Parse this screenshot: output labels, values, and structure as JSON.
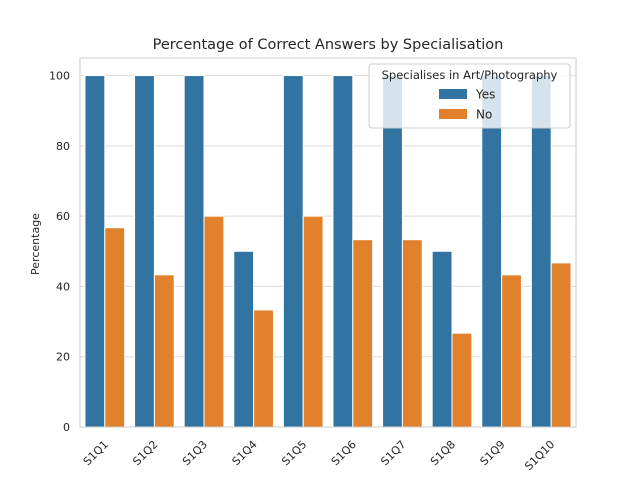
{
  "chart_data": {
    "type": "bar",
    "title": "Percentage of Correct Answers by Specialisation",
    "xlabel": "",
    "ylabel": "Percentage",
    "categories": [
      "S1Q1",
      "S1Q2",
      "S1Q3",
      "S1Q4",
      "S1Q5",
      "S1Q6",
      "S1Q7",
      "S1Q8",
      "S1Q9",
      "S1Q10"
    ],
    "series": [
      {
        "name": "Yes",
        "color": "#3274a1",
        "values": [
          100,
          100,
          100,
          50,
          100,
          100,
          100,
          50,
          100,
          100
        ]
      },
      {
        "name": "No",
        "color": "#e1812c",
        "values": [
          56.7,
          43.3,
          60,
          33.3,
          60,
          53.3,
          53.3,
          26.7,
          43.3,
          46.7
        ]
      }
    ],
    "ylim": [
      0,
      105
    ],
    "yticks": [
      0,
      20,
      40,
      60,
      80,
      100
    ],
    "grid": true,
    "legend": {
      "title": "Specialises in Art/Photography",
      "position": "top-right"
    }
  }
}
